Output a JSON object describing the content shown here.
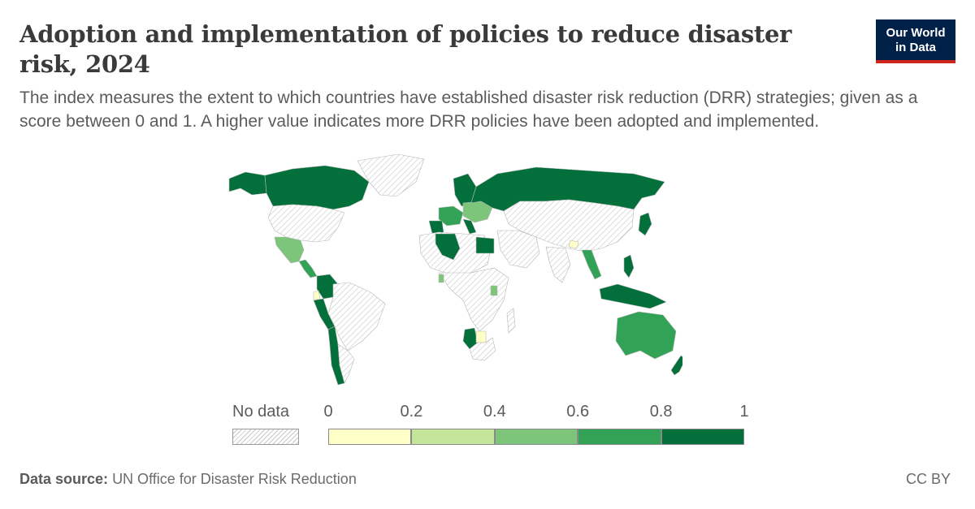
{
  "title": "Adoption and implementation of policies to reduce disaster risk, 2024",
  "subtitle": "The index measures the extent to which countries have established disaster risk reduction (DRR) strategies; given as a score between 0 and 1. A higher value indicates more DRR policies have been adopted and implemented.",
  "logo": {
    "line1": "Our World",
    "line2": "in Data"
  },
  "legend": {
    "no_data_label": "No data",
    "ticks": [
      "0",
      "0.2",
      "0.4",
      "0.6",
      "0.8",
      "1"
    ],
    "bins": [
      {
        "min": 0,
        "max": 0.2,
        "color": "#ffffc8"
      },
      {
        "min": 0.2,
        "max": 0.4,
        "color": "#c4e69a"
      },
      {
        "min": 0.4,
        "max": 0.6,
        "color": "#7cc57a"
      },
      {
        "min": 0.6,
        "max": 0.8,
        "color": "#32a257"
      },
      {
        "min": 0.8,
        "max": 1,
        "color": "#03703c"
      }
    ]
  },
  "source_label": "Data source:",
  "source_text": "UN Office for Disaster Risk Reduction",
  "license": "CC BY"
}
